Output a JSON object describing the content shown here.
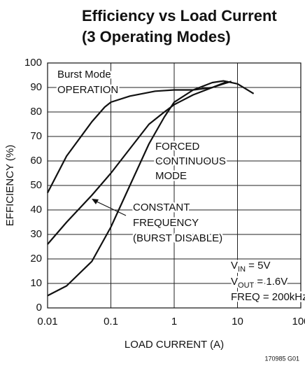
{
  "chart_data": {
    "type": "line",
    "title": [
      "Efficiency vs Load Current",
      "(3 Operating Modes)"
    ],
    "x_label": "LOAD CURRENT (A)",
    "y_label": "EFFICIENCY (%)",
    "xlim": [
      0.01,
      100
    ],
    "xticks": [
      0.01,
      0.1,
      1,
      10,
      100
    ],
    "xscale": "log",
    "ylim": [
      0,
      100
    ],
    "yticks": [
      0,
      10,
      20,
      30,
      40,
      50,
      60,
      70,
      80,
      90,
      100
    ],
    "grid": true,
    "series": [
      {
        "name": "Burst Mode OPERATION",
        "color": "#111111",
        "x": [
          0.01,
          0.02,
          0.05,
          0.08,
          0.1,
          0.2,
          0.5,
          1,
          2,
          4,
          6,
          8
        ],
        "values": [
          47,
          62,
          76,
          82,
          84,
          86.5,
          88.5,
          89,
          89,
          90,
          91.5,
          92.5
        ]
      },
      {
        "name": "CONSTANT FREQUENCY (BURST DISABLE)",
        "color": "#111111",
        "x": [
          0.01,
          0.02,
          0.05,
          0.1,
          0.2,
          0.4,
          0.7,
          1,
          2,
          4,
          7
        ],
        "values": [
          26,
          35,
          46,
          55,
          65,
          75,
          80,
          83,
          87,
          90,
          92.5
        ]
      },
      {
        "name": "FORCED CONTINUOUS MODE",
        "color": "#111111",
        "x": [
          0.01,
          0.02,
          0.05,
          0.1,
          0.2,
          0.4,
          0.7,
          1,
          2,
          4,
          6,
          10,
          18
        ],
        "values": [
          5,
          9,
          19,
          33,
          50,
          67,
          78,
          84,
          89,
          92,
          92.7,
          91.5,
          87.5
        ]
      }
    ],
    "annotations": [
      {
        "lines": [
          "Burst Mode",
          "OPERATION"
        ]
      },
      {
        "lines": [
          "FORCED",
          "CONTINUOUS",
          "MODE"
        ]
      },
      {
        "lines": [
          "CONSTANT",
          "FREQUENCY",
          "(BURST DISABLE)"
        ]
      }
    ],
    "conditions": [
      {
        "base": "V",
        "sub": "IN",
        "rest": " = 5V"
      },
      {
        "base": "V",
        "sub": "OUT",
        "rest": " = 1.6V"
      },
      {
        "base": "FREQ = 200kHz"
      }
    ],
    "footnote": "170985 G01"
  }
}
